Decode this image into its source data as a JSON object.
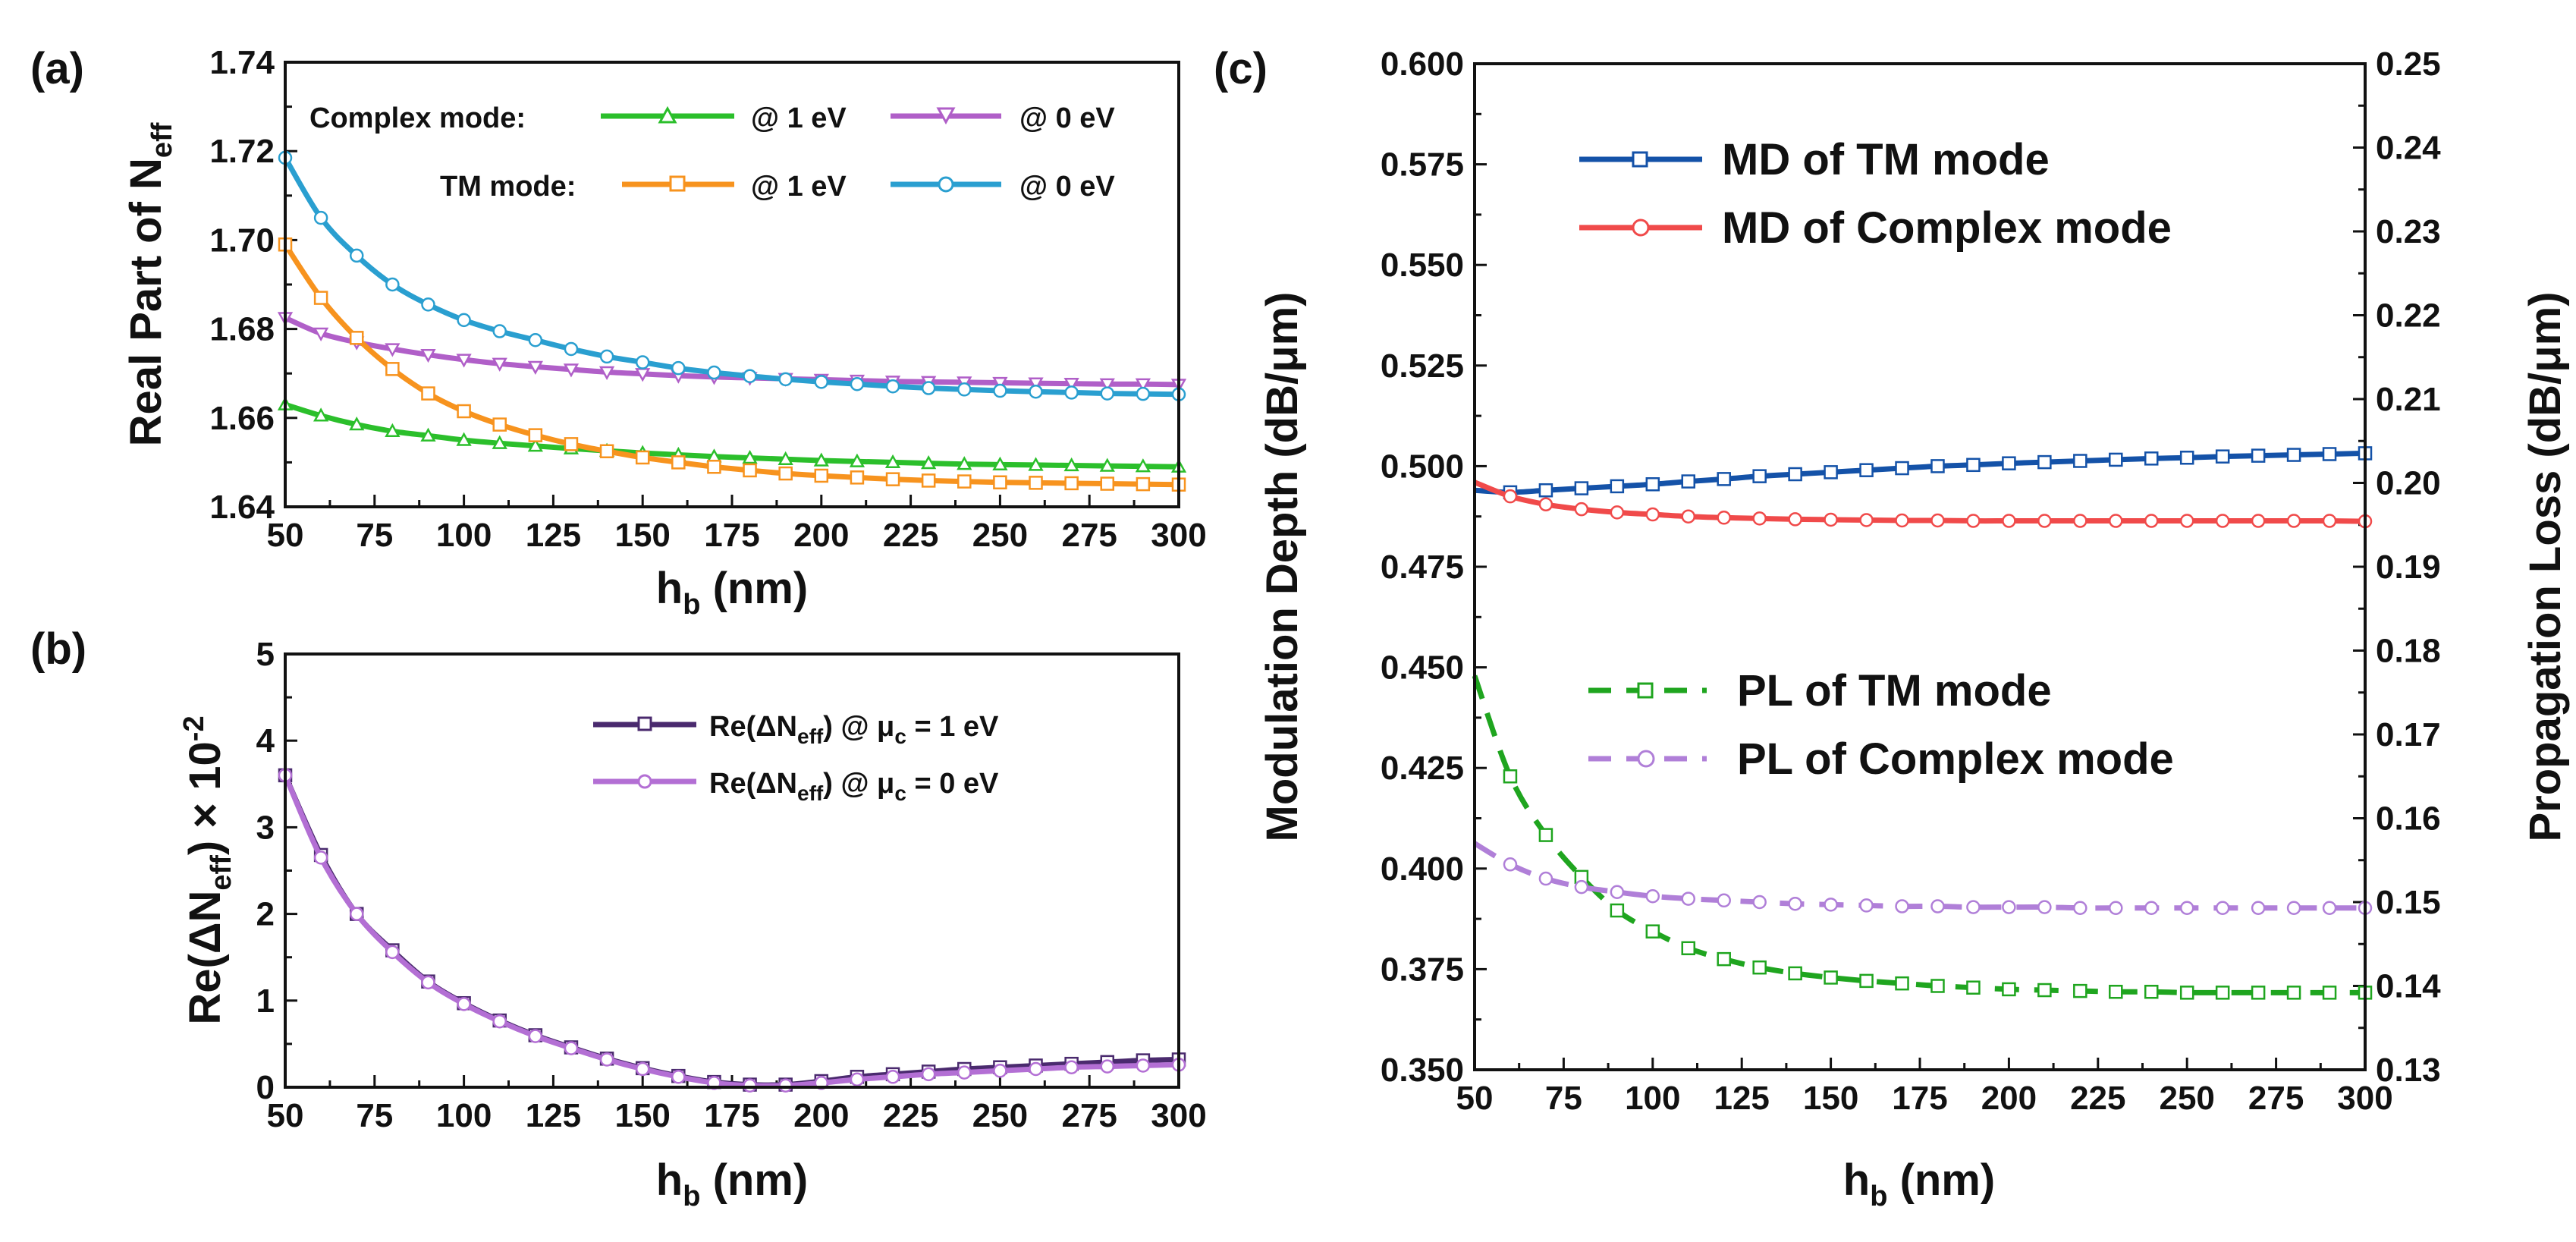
{
  "chart_data": [
    {
      "panel": "(a)",
      "type": "line",
      "xlabel": "h_b (nm)",
      "ylabel": "Real Part of N_eff",
      "xlim": [
        50,
        300
      ],
      "ylim": [
        1.64,
        1.74
      ],
      "xticks": [
        "50",
        "75",
        "100",
        "125",
        "150",
        "175",
        "200",
        "225",
        "250",
        "275",
        "300"
      ],
      "yticks": [
        "1.64",
        "1.66",
        "1.68",
        "1.70",
        "1.72",
        "1.74"
      ],
      "legend_groups": [
        "Complex mode:",
        "TM mode:"
      ],
      "x": [
        50,
        60,
        70,
        80,
        90,
        100,
        110,
        120,
        130,
        140,
        150,
        160,
        170,
        180,
        190,
        200,
        210,
        220,
        230,
        240,
        250,
        260,
        270,
        280,
        290,
        300
      ],
      "series": [
        {
          "name": "@ 1 eV",
          "group": "Complex mode:",
          "color": "#2bbf2b",
          "marker": "triangle-up",
          "values": [
            1.663,
            1.6605,
            1.6585,
            1.657,
            1.656,
            1.655,
            1.6543,
            1.6537,
            1.6531,
            1.6526,
            1.6521,
            1.6517,
            1.6513,
            1.651,
            1.6507,
            1.6504,
            1.6502,
            1.65,
            1.6498,
            1.6496,
            1.6495,
            1.6494,
            1.6493,
            1.6492,
            1.6491,
            1.649
          ]
        },
        {
          "name": "@ 0 eV",
          "group": "Complex mode:",
          "color": "#b05fc8",
          "marker": "triangle-down",
          "values": [
            1.6825,
            1.679,
            1.677,
            1.6755,
            1.6742,
            1.6731,
            1.6722,
            1.6715,
            1.6709,
            1.6703,
            1.6699,
            1.6695,
            1.6692,
            1.669,
            1.6688,
            1.6686,
            1.6684,
            1.6682,
            1.6681,
            1.668,
            1.6679,
            1.6678,
            1.6677,
            1.6676,
            1.6676,
            1.6675
          ]
        },
        {
          "name": "@ 1 eV",
          "group": "TM mode:",
          "color": "#f7931e",
          "marker": "square",
          "values": [
            1.699,
            1.687,
            1.678,
            1.671,
            1.6655,
            1.6615,
            1.6585,
            1.6561,
            1.6541,
            1.6525,
            1.6511,
            1.65,
            1.649,
            1.6482,
            1.6475,
            1.647,
            1.6466,
            1.6462,
            1.6459,
            1.6457,
            1.6455,
            1.6454,
            1.6453,
            1.6452,
            1.6451,
            1.645
          ]
        },
        {
          "name": "@ 0 eV",
          "group": "TM mode:",
          "color": "#2a9fd0",
          "marker": "circle",
          "values": [
            1.7185,
            1.705,
            1.6965,
            1.69,
            1.6855,
            1.682,
            1.6795,
            1.6775,
            1.6755,
            1.6738,
            1.6725,
            1.6712,
            1.6702,
            1.6694,
            1.6687,
            1.6681,
            1.6676,
            1.6671,
            1.6667,
            1.6664,
            1.6661,
            1.6659,
            1.6657,
            1.6655,
            1.6654,
            1.6653
          ]
        }
      ]
    },
    {
      "panel": "(b)",
      "type": "line",
      "xlabel": "h_b (nm)",
      "ylabel": "Re(ΔN_eff) × 10^-2",
      "xlim": [
        50,
        300
      ],
      "ylim": [
        0,
        5
      ],
      "xticks": [
        "50",
        "75",
        "100",
        "125",
        "150",
        "175",
        "200",
        "225",
        "250",
        "275",
        "300"
      ],
      "yticks": [
        "0",
        "1",
        "2",
        "3",
        "4",
        "5"
      ],
      "x": [
        50,
        60,
        70,
        80,
        90,
        100,
        110,
        120,
        130,
        140,
        150,
        160,
        170,
        180,
        190,
        200,
        210,
        220,
        230,
        240,
        250,
        260,
        270,
        280,
        290,
        300
      ],
      "series": [
        {
          "name": "Re(ΔN_eff) @ μ_c = 1 eV",
          "color": "#4a2a6e",
          "marker": "square",
          "values": [
            3.6,
            2.68,
            2.0,
            1.58,
            1.22,
            0.97,
            0.77,
            0.6,
            0.46,
            0.33,
            0.22,
            0.13,
            0.06,
            0.03,
            0.03,
            0.07,
            0.12,
            0.15,
            0.18,
            0.21,
            0.23,
            0.25,
            0.27,
            0.29,
            0.31,
            0.32
          ]
        },
        {
          "name": "Re(ΔN_eff) @ μ_c = 0 eV",
          "color": "#b36fd4",
          "marker": "circle",
          "values": [
            3.6,
            2.65,
            2.0,
            1.56,
            1.21,
            0.96,
            0.76,
            0.59,
            0.45,
            0.32,
            0.21,
            0.12,
            0.05,
            0.02,
            0.02,
            0.05,
            0.09,
            0.12,
            0.15,
            0.17,
            0.19,
            0.21,
            0.23,
            0.24,
            0.25,
            0.26
          ]
        }
      ]
    },
    {
      "panel": "(c)",
      "type": "line",
      "xlabel": "h_b (nm)",
      "ylabel": "Modulation Depth (dB/μm)",
      "y2label": "Propagation Loss (dB/μm)",
      "xlim": [
        50,
        300
      ],
      "ylim": [
        0.35,
        0.6
      ],
      "y2lim": [
        0.13,
        0.25
      ],
      "xticks": [
        "50",
        "75",
        "100",
        "125",
        "150",
        "175",
        "200",
        "225",
        "250",
        "275",
        "300"
      ],
      "yticks": [
        "0.350",
        "0.375",
        "0.400",
        "0.425",
        "0.450",
        "0.475",
        "0.500",
        "0.525",
        "0.550",
        "0.575",
        "0.600"
      ],
      "y2ticks": [
        "0.13",
        "0.14",
        "0.15",
        "0.16",
        "0.17",
        "0.18",
        "0.19",
        "0.20",
        "0.21",
        "0.22",
        "0.23",
        "0.24",
        "0.25"
      ],
      "x": [
        50,
        60,
        70,
        80,
        90,
        100,
        110,
        120,
        130,
        140,
        150,
        160,
        170,
        180,
        190,
        200,
        210,
        220,
        230,
        240,
        250,
        260,
        270,
        280,
        290,
        300
      ],
      "series": [
        {
          "name": "MD of TM mode",
          "axis": "left",
          "color": "#1452a8",
          "marker": "square",
          "dash": false,
          "values": [
            0.494,
            0.4935,
            0.494,
            0.4945,
            0.495,
            0.4955,
            0.4962,
            0.4968,
            0.4975,
            0.498,
            0.4985,
            0.499,
            0.4995,
            0.5,
            0.5003,
            0.5007,
            0.501,
            0.5013,
            0.5016,
            0.5019,
            0.5021,
            0.5024,
            0.5026,
            0.5028,
            0.503,
            0.5032
          ]
        },
        {
          "name": "MD of Complex mode",
          "axis": "left",
          "color": "#f04a4a",
          "marker": "circle",
          "dash": false,
          "values": [
            0.496,
            0.4925,
            0.4905,
            0.4893,
            0.4885,
            0.488,
            0.4875,
            0.4872,
            0.487,
            0.4868,
            0.4867,
            0.4866,
            0.4865,
            0.4865,
            0.4864,
            0.4864,
            0.4864,
            0.4864,
            0.4864,
            0.4864,
            0.4864,
            0.4864,
            0.4864,
            0.4864,
            0.4864,
            0.4863
          ]
        },
        {
          "name": "PL of TM mode",
          "axis": "right",
          "color": "#1fa51f",
          "marker": "square",
          "dash": true,
          "values": [
            0.177,
            0.165,
            0.158,
            0.153,
            0.149,
            0.1465,
            0.1445,
            0.1432,
            0.1422,
            0.1415,
            0.141,
            0.1406,
            0.1403,
            0.14,
            0.1398,
            0.1396,
            0.1395,
            0.1394,
            0.1393,
            0.1393,
            0.1392,
            0.1392,
            0.1392,
            0.1392,
            0.1392,
            0.1392
          ]
        },
        {
          "name": "PL of Complex mode",
          "axis": "right",
          "color": "#b07fd8",
          "marker": "circle",
          "dash": true,
          "values": [
            0.157,
            0.1545,
            0.1528,
            0.1518,
            0.1512,
            0.1507,
            0.1504,
            0.1502,
            0.15,
            0.1498,
            0.1497,
            0.1496,
            0.1495,
            0.1495,
            0.1494,
            0.1494,
            0.1494,
            0.1493,
            0.1493,
            0.1493,
            0.1493,
            0.1493,
            0.1493,
            0.1493,
            0.1493,
            0.1493
          ]
        }
      ]
    }
  ]
}
